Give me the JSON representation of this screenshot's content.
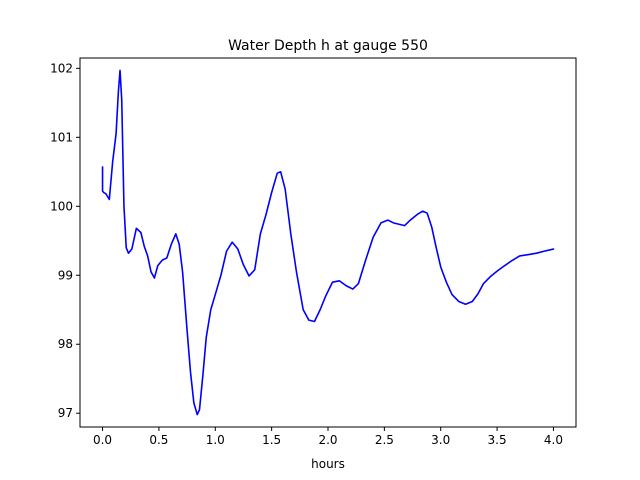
{
  "chart_data": {
    "type": "line",
    "title": "Water Depth h at gauge 550",
    "xlabel": "hours",
    "ylabel": "",
    "xlim": [
      -0.2,
      4.2
    ],
    "ylim": [
      96.8,
      102.15
    ],
    "xticks": [
      0.0,
      0.5,
      1.0,
      1.5,
      2.0,
      2.5,
      3.0,
      3.5,
      4.0
    ],
    "xtick_labels": [
      "0.0",
      "0.5",
      "1.0",
      "1.5",
      "2.0",
      "2.5",
      "3.0",
      "3.5",
      "4.0"
    ],
    "yticks": [
      97,
      98,
      99,
      100,
      101,
      102
    ],
    "ytick_labels": [
      "97",
      "98",
      "99",
      "100",
      "101",
      "102"
    ],
    "grid": false,
    "line_color": "#0000ff",
    "series": [
      {
        "x": [
          0.0,
          0.0,
          0.01,
          0.03,
          0.06,
          0.09,
          0.12,
          0.14,
          0.155,
          0.17,
          0.19,
          0.21,
          0.23,
          0.26,
          0.3,
          0.34,
          0.37,
          0.4,
          0.43,
          0.46,
          0.49,
          0.53,
          0.57,
          0.61,
          0.65,
          0.68,
          0.71,
          0.75,
          0.78,
          0.81,
          0.84,
          0.86,
          0.89,
          0.92,
          0.96,
          1.0,
          1.05,
          1.1,
          1.15,
          1.2,
          1.25,
          1.3,
          1.35,
          1.4,
          1.45,
          1.5,
          1.55,
          1.58,
          1.62,
          1.67,
          1.72,
          1.78,
          1.83,
          1.88,
          1.93,
          1.98,
          2.04,
          2.1,
          2.16,
          2.22,
          2.27,
          2.33,
          2.4,
          2.47,
          2.53,
          2.58,
          2.63,
          2.68,
          2.73,
          2.79,
          2.84,
          2.88,
          2.92,
          2.96,
          3.0,
          3.05,
          3.1,
          3.16,
          3.22,
          3.28,
          3.33,
          3.38,
          3.44,
          3.5,
          3.55,
          3.62,
          3.7,
          3.78,
          3.85,
          3.92,
          4.0
        ],
        "y": [
          100.57,
          100.22,
          100.2,
          100.18,
          100.1,
          100.65,
          101.05,
          101.65,
          101.97,
          101.55,
          100.0,
          99.4,
          99.32,
          99.38,
          99.68,
          99.62,
          99.42,
          99.28,
          99.05,
          98.96,
          99.14,
          99.22,
          99.25,
          99.45,
          99.6,
          99.45,
          99.05,
          98.2,
          97.6,
          97.15,
          96.98,
          97.05,
          97.55,
          98.1,
          98.5,
          98.72,
          99.0,
          99.35,
          99.48,
          99.38,
          99.15,
          98.99,
          99.08,
          99.6,
          99.88,
          100.2,
          100.48,
          100.5,
          100.25,
          99.6,
          99.05,
          98.5,
          98.35,
          98.33,
          98.5,
          98.7,
          98.9,
          98.92,
          98.85,
          98.8,
          98.88,
          99.2,
          99.55,
          99.76,
          99.8,
          99.76,
          99.74,
          99.72,
          99.8,
          99.88,
          99.93,
          99.9,
          99.7,
          99.4,
          99.12,
          98.9,
          98.72,
          98.62,
          98.58,
          98.62,
          98.73,
          98.88,
          98.98,
          99.06,
          99.12,
          99.2,
          99.28,
          99.3,
          99.32,
          99.35,
          99.38
        ]
      }
    ]
  }
}
